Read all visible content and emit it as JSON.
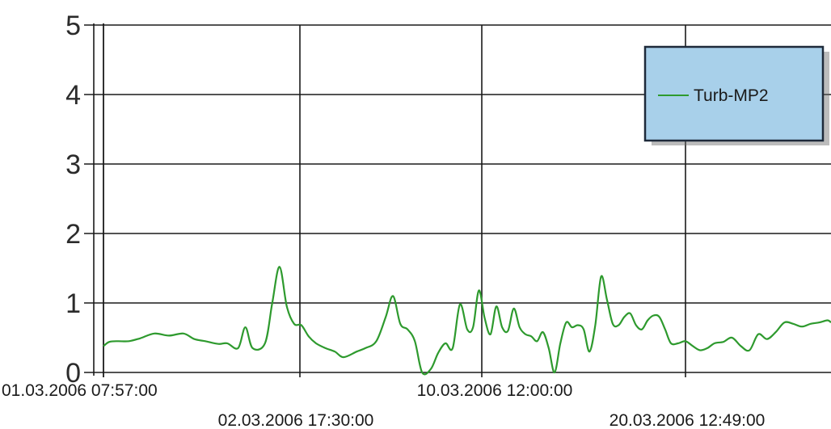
{
  "chart_data": {
    "type": "line",
    "title": "",
    "xlabel": "",
    "ylabel": "",
    "ylim": [
      0,
      5
    ],
    "yticks": [
      0,
      1,
      2,
      3,
      4,
      5
    ],
    "grid": true,
    "legend_position": "top-right",
    "x_tick_labels": [
      {
        "label": "01.03.2006 07:57:00",
        "row": 1
      },
      {
        "label": "02.03.2006 17:30:00",
        "row": 2
      },
      {
        "label": "10.03.2006 12:00:00",
        "row": 1
      },
      {
        "label": "20.03.2006 12:49:00",
        "row": 2
      }
    ],
    "legend_box_color": "#a8d0ea",
    "series": [
      {
        "name": "Turb-MP2",
        "color": "#2e9a2e",
        "x": [
          0,
          0.008,
          0.02,
          0.035,
          0.05,
          0.07,
          0.09,
          0.11,
          0.125,
          0.14,
          0.158,
          0.17,
          0.185,
          0.195,
          0.205,
          0.222,
          0.232,
          0.242,
          0.252,
          0.262,
          0.272,
          0.282,
          0.292,
          0.305,
          0.318,
          0.33,
          0.348,
          0.36,
          0.375,
          0.388,
          0.398,
          0.408,
          0.418,
          0.428,
          0.438,
          0.45,
          0.46,
          0.47,
          0.48,
          0.49,
          0.5,
          0.508,
          0.516,
          0.524,
          0.532,
          0.54,
          0.548,
          0.556,
          0.564,
          0.572,
          0.58,
          0.588,
          0.596,
          0.604,
          0.612,
          0.62,
          0.628,
          0.636,
          0.644,
          0.652,
          0.66,
          0.668,
          0.676,
          0.684,
          0.692,
          0.7,
          0.708,
          0.716,
          0.724,
          0.732,
          0.74,
          0.748,
          0.756,
          0.764,
          0.772,
          0.78,
          0.79,
          0.8,
          0.81,
          0.82,
          0.83,
          0.84,
          0.852,
          0.864,
          0.876,
          0.888,
          0.9,
          0.912,
          0.924,
          0.936,
          0.948,
          0.96,
          0.972,
          0.984,
          0.995,
          1.0
        ],
        "y": [
          0.38,
          0.44,
          0.45,
          0.45,
          0.49,
          0.56,
          0.53,
          0.56,
          0.48,
          0.45,
          0.41,
          0.42,
          0.35,
          0.65,
          0.35,
          0.42,
          1.0,
          1.52,
          0.95,
          0.7,
          0.68,
          0.52,
          0.42,
          0.35,
          0.3,
          0.22,
          0.3,
          0.35,
          0.45,
          0.8,
          1.1,
          0.7,
          0.62,
          0.45,
          0.0,
          0.05,
          0.28,
          0.42,
          0.35,
          0.98,
          0.62,
          0.65,
          1.18,
          0.78,
          0.55,
          0.95,
          0.65,
          0.6,
          0.92,
          0.65,
          0.55,
          0.52,
          0.45,
          0.58,
          0.35,
          0.0,
          0.42,
          0.72,
          0.65,
          0.68,
          0.62,
          0.3,
          0.68,
          1.38,
          1.05,
          0.7,
          0.68,
          0.8,
          0.85,
          0.68,
          0.62,
          0.75,
          0.82,
          0.8,
          0.62,
          0.42,
          0.42,
          0.45,
          0.38,
          0.32,
          0.35,
          0.42,
          0.44,
          0.5,
          0.38,
          0.32,
          0.55,
          0.48,
          0.58,
          0.72,
          0.7,
          0.66,
          0.7,
          0.72,
          0.75,
          0.72
        ]
      }
    ]
  }
}
